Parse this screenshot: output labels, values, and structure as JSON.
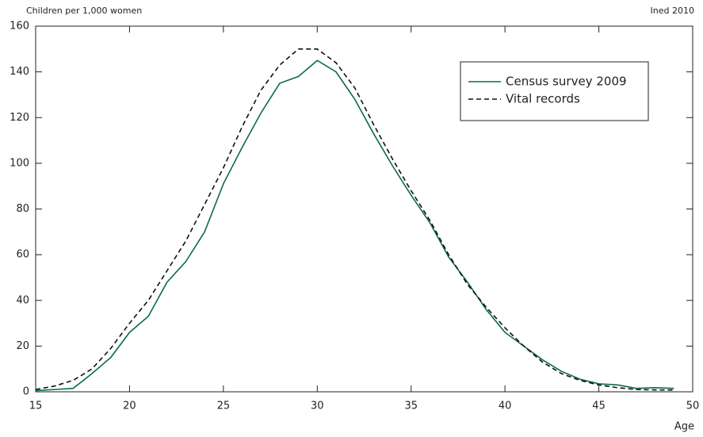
{
  "chart_data": {
    "type": "line",
    "y_label": "Children per 1,000 women",
    "source": "Ined 2010",
    "x_label": "Age",
    "x": [
      15,
      16,
      17,
      18,
      19,
      20,
      21,
      22,
      23,
      24,
      25,
      26,
      27,
      28,
      29,
      30,
      31,
      32,
      33,
      34,
      35,
      36,
      37,
      38,
      39,
      40,
      41,
      42,
      43,
      44,
      45,
      46,
      47,
      48,
      49
    ],
    "series": [
      {
        "name": "Census survey 2009",
        "color": "#0b6b4f",
        "dash": "none",
        "values": [
          0.5,
          1,
          1.5,
          8,
          15,
          26,
          33,
          48,
          57,
          70,
          91,
          107,
          122,
          135,
          138,
          145,
          140,
          128,
          113,
          99,
          86,
          74,
          59,
          48,
          36,
          26,
          20,
          14,
          9,
          5.5,
          3.5,
          3,
          1.5,
          1.8,
          1.5
        ]
      },
      {
        "name": "Vital records",
        "color": "#111111",
        "dash": "6,4",
        "values": [
          1,
          2.5,
          5,
          10,
          19,
          30,
          40,
          53,
          66,
          82,
          98,
          116,
          132,
          143,
          150,
          150,
          144,
          133,
          117,
          102,
          88,
          75,
          60,
          47,
          37,
          28,
          20,
          13,
          8,
          5,
          3,
          1.8,
          1,
          0.8,
          0.8
        ]
      }
    ],
    "xlim": [
      15,
      50
    ],
    "xticks": [
      15,
      20,
      25,
      30,
      35,
      40,
      45,
      50
    ],
    "ylim": [
      0,
      160
    ],
    "yticks": [
      0,
      20,
      40,
      60,
      80,
      100,
      120,
      140,
      160
    ]
  }
}
